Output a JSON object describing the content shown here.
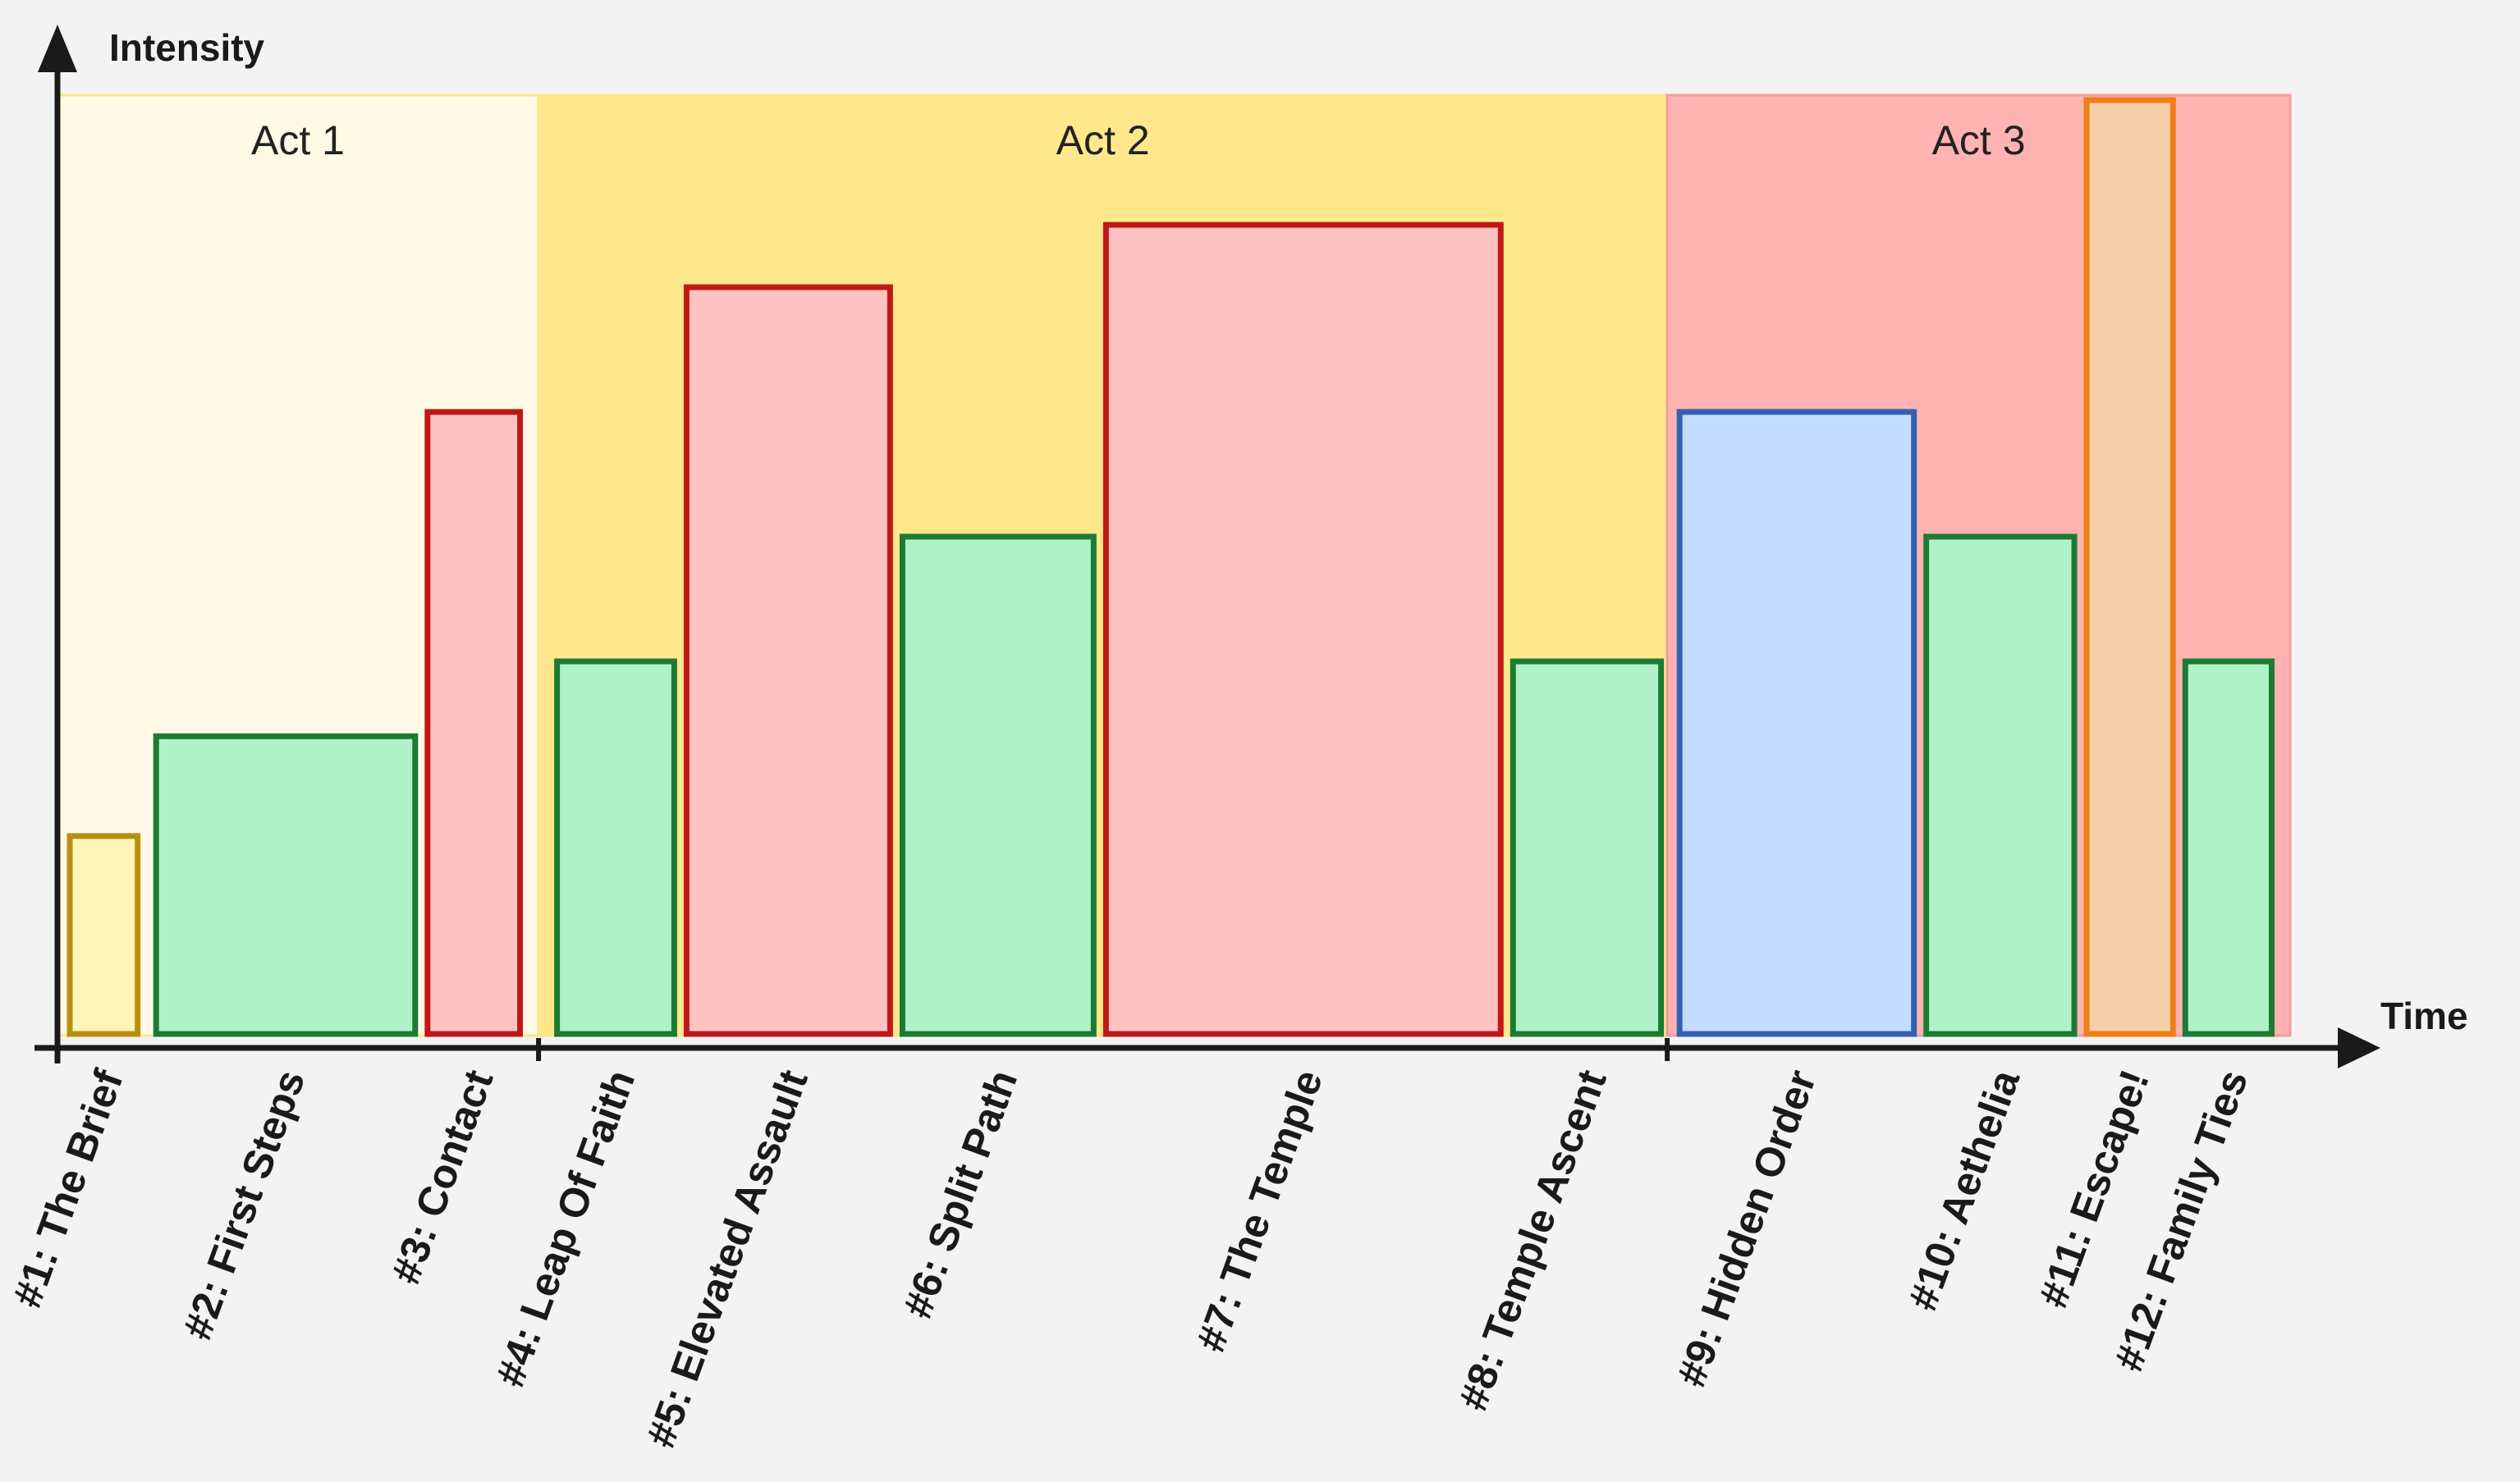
{
  "chart_data": {
    "type": "bar",
    "ylabel": "Intensity",
    "xlabel": "Time",
    "grid": false,
    "legend": "none",
    "acts": [
      {
        "label": "Act 1",
        "start": 0,
        "end": 7.8,
        "fill": "#fff9e6",
        "stroke": "#fde58a"
      },
      {
        "label": "Act 2",
        "start": 7.8,
        "end": 26.1,
        "fill": "#ffe88c",
        "stroke": "#fde58a"
      },
      {
        "label": "Act 3",
        "start": 26.1,
        "end": 36.2,
        "fill": "#ffb3b3",
        "stroke": "#f59aa0"
      }
    ],
    "bars": [
      {
        "label": "#1: The Brief",
        "start": 0.2,
        "end": 1.3,
        "value": 1.6,
        "color": "yellow"
      },
      {
        "label": "#2: First Steps",
        "start": 1.6,
        "end": 5.8,
        "value": 2.4,
        "color": "green"
      },
      {
        "label": "#3: Contact",
        "start": 6.0,
        "end": 7.5,
        "value": 5.0,
        "color": "red"
      },
      {
        "label": "#4: Leap Of Faith",
        "start": 8.1,
        "end": 10.0,
        "value": 3.0,
        "color": "green"
      },
      {
        "label": "#5: Elevated Assault",
        "start": 10.2,
        "end": 13.5,
        "value": 6.0,
        "color": "red"
      },
      {
        "label": "#6: Split Path",
        "start": 13.7,
        "end": 16.8,
        "value": 4.0,
        "color": "green"
      },
      {
        "label": "#7: The Temple",
        "start": 17.0,
        "end": 23.4,
        "value": 6.5,
        "color": "red"
      },
      {
        "label": "#8: Temple Ascent",
        "start": 23.6,
        "end": 26.0,
        "value": 3.0,
        "color": "green"
      },
      {
        "label": "#9: Hidden Order",
        "start": 26.3,
        "end": 30.1,
        "value": 5.0,
        "color": "blue"
      },
      {
        "label": "#10: Aethelia",
        "start": 30.3,
        "end": 32.7,
        "value": 4.0,
        "color": "green"
      },
      {
        "label": "#11: Escape!",
        "start": 32.9,
        "end": 34.3,
        "value": 7.5,
        "color": "orange"
      },
      {
        "label": "#12: Family Ties",
        "start": 34.5,
        "end": 35.9,
        "value": 3.0,
        "color": "green"
      }
    ],
    "colors": {
      "yellow": {
        "fill": "#fff5b8",
        "stroke": "#b8900e"
      },
      "green": {
        "fill": "#b0f2c8",
        "stroke": "#1c7a32"
      },
      "red": {
        "fill": "#ffc2c2",
        "stroke": "#c01818"
      },
      "blue": {
        "fill": "#c4dcff",
        "stroke": "#3360b0"
      },
      "orange": {
        "fill": "#f5d0a8",
        "stroke": "#f07e18"
      }
    }
  }
}
